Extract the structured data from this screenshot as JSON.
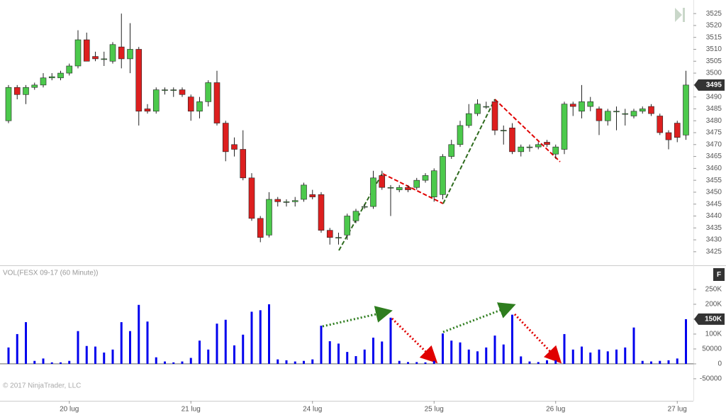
{
  "chart_data": [
    {
      "type": "candlestick",
      "ylim": [
        3419.3,
        3530.7
      ],
      "yticks": [
        3425,
        3430,
        3435,
        3440,
        3445,
        3450,
        3455,
        3460,
        3465,
        3470,
        3475,
        3480,
        3485,
        3490,
        3495,
        3500,
        3505,
        3510,
        3515,
        3520,
        3525
      ],
      "up_color": "#4cc94c",
      "down_color": "#dd1f1f",
      "open": [
        3480,
        3494,
        3491,
        3494,
        3495,
        3498,
        3498,
        3500,
        3503,
        3514,
        3507,
        3506,
        3505,
        3511,
        3506,
        3510,
        3485,
        3484,
        3493,
        3493,
        3493,
        3490,
        3484,
        3488,
        3496,
        3479,
        3470,
        3468,
        3456,
        3439,
        3432,
        3447,
        3446,
        3446,
        3447,
        3449,
        3449,
        3434,
        3431,
        3432,
        3438,
        3444,
        3444,
        3457,
        3452,
        3451,
        3452,
        3452,
        3455,
        3448,
        3449,
        3465,
        3470,
        3478,
        3483,
        3486,
        3488,
        3476,
        3477,
        3467,
        3469,
        3469,
        3471,
        3466,
        3468,
        3487,
        3484,
        3486,
        3485,
        3480,
        3484,
        3483,
        3482,
        3484,
        3486,
        3482,
        3475,
        3479,
        3474
      ],
      "high": [
        3495,
        3495,
        3495,
        3496,
        3500,
        3500,
        3501,
        3504,
        3518,
        3517,
        3509,
        3509,
        3513,
        3525,
        3521,
        3511,
        3487,
        3494,
        3494,
        3494,
        3494,
        3491,
        3490,
        3497,
        3501,
        3480,
        3473,
        3476,
        3458,
        3440,
        3450,
        3448,
        3447,
        3448,
        3454,
        3451,
        3450,
        3435,
        3433,
        3441,
        3443,
        3445,
        3459,
        3459,
        3453,
        3453,
        3453,
        3456,
        3458,
        3460,
        3466,
        3472,
        3480,
        3487,
        3489,
        3488,
        3489,
        3478,
        3479,
        3470,
        3470,
        3471,
        3472,
        3470,
        3488,
        3488,
        3495,
        3490,
        3486,
        3485,
        3486,
        3485,
        3485,
        3486,
        3487,
        3483,
        3476,
        3480,
        3501
      ],
      "low": [
        3479,
        3489,
        3487,
        3493,
        3494,
        3497,
        3497,
        3499,
        3502,
        3505,
        3505,
        3503,
        3504,
        3502,
        3500,
        3478,
        3483,
        3483,
        3491,
        3490,
        3490,
        3480,
        3481,
        3486,
        3478,
        3463,
        3465,
        3455,
        3438,
        3429,
        3431,
        3444,
        3444,
        3444,
        3446,
        3447,
        3433,
        3428,
        3428,
        3430,
        3437,
        3443,
        3443,
        3451,
        3440,
        3450,
        3450,
        3451,
        3454,
        3446,
        3447,
        3464,
        3469,
        3477,
        3482,
        3485,
        3474,
        3470,
        3466,
        3465,
        3467,
        3468,
        3469,
        3464,
        3466,
        3482,
        3481,
        3484,
        3474,
        3478,
        3476,
        3478,
        3481,
        3483,
        3482,
        3474,
        3468,
        3471,
        3472
      ],
      "close": [
        3494,
        3491,
        3494,
        3495,
        3498,
        3498.5,
        3500,
        3503,
        3514,
        3505,
        3506,
        3506,
        3512,
        3506,
        3510,
        3484,
        3484,
        3493,
        3493,
        3493,
        3491,
        3484,
        3488,
        3496,
        3479,
        3467,
        3468,
        3456,
        3439,
        3431,
        3447,
        3446,
        3446,
        3446.5,
        3453,
        3448,
        3434,
        3431,
        3431,
        3440,
        3442,
        3444,
        3456,
        3452,
        3452,
        3452,
        3451,
        3455,
        3457,
        3459,
        3465,
        3470,
        3478,
        3483,
        3487,
        3486,
        3476,
        3476,
        3467,
        3469,
        3469,
        3470,
        3470,
        3469,
        3487,
        3486,
        3488,
        3488,
        3480,
        3484,
        3484,
        3483,
        3484,
        3485,
        3483,
        3475,
        3472,
        3473,
        3495
      ]
    },
    {
      "type": "bar",
      "title": "VOL(FESX 09-17 (60 Minute))",
      "credit": "© 2017 NinjaTrader, LLC",
      "panel_button": "F",
      "color": "#0000ee",
      "ylim": [
        -124000,
        326000
      ],
      "yticks": [
        {
          "value": 250000,
          "label": "250K"
        },
        {
          "value": 200000,
          "label": "200K"
        },
        {
          "value": 150000,
          "label": "150K"
        },
        {
          "value": 100000,
          "label": "100K"
        },
        50000,
        0,
        -50000
      ],
      "categories": [
        null,
        null,
        null,
        null,
        null,
        null,
        null,
        "20 lug",
        null,
        null,
        null,
        null,
        null,
        null,
        null,
        null,
        null,
        null,
        null,
        null,
        null,
        "21 lug",
        null,
        null,
        null,
        null,
        null,
        null,
        null,
        null,
        null,
        null,
        null,
        null,
        null,
        "24 lug",
        null,
        null,
        null,
        null,
        null,
        null,
        null,
        null,
        null,
        null,
        null,
        null,
        null,
        "25 lug",
        null,
        null,
        null,
        null,
        null,
        null,
        null,
        null,
        null,
        null,
        null,
        null,
        null,
        "26 lug",
        null,
        null,
        null,
        null,
        null,
        null,
        null,
        null,
        null,
        null,
        null,
        null,
        null,
        "27 lug",
        null
      ],
      "values": [
        55000,
        100000,
        140000,
        10000,
        18000,
        5000,
        5000,
        10000,
        110000,
        60000,
        58000,
        38000,
        48000,
        140000,
        110000,
        198000,
        142000,
        22000,
        8000,
        5000,
        8000,
        20000,
        78000,
        48000,
        135000,
        148000,
        62000,
        98000,
        175000,
        180000,
        200000,
        15000,
        12000,
        8000,
        10000,
        15000,
        128000,
        76000,
        68000,
        40000,
        26000,
        48000,
        88000,
        75000,
        155000,
        10000,
        6000,
        6000,
        5000,
        10000,
        102000,
        78000,
        72000,
        48000,
        42000,
        55000,
        95000,
        65000,
        165000,
        25000,
        8000,
        6000,
        12000,
        12000,
        100000,
        48000,
        58000,
        38000,
        48000,
        42000,
        48000,
        55000,
        122000,
        10000,
        8000,
        10000,
        12000,
        18000,
        150000
      ],
      "value_labels": [
        null,
        null,
        null,
        null,
        null,
        null,
        null,
        null,
        null,
        null,
        null,
        null,
        null,
        null,
        null,
        null,
        null,
        null,
        null,
        null,
        null,
        null,
        null,
        null,
        null,
        null,
        null,
        null,
        null,
        null,
        null,
        null,
        null,
        null,
        null,
        null,
        null,
        null,
        null,
        null,
        null,
        null,
        null,
        null,
        null,
        null,
        null,
        null,
        null,
        null,
        null,
        null,
        null,
        null,
        null,
        null,
        null,
        null,
        null,
        null,
        null,
        null,
        null,
        null,
        null,
        null,
        null,
        null,
        null,
        null,
        null,
        null,
        null,
        null,
        null,
        null,
        null,
        null,
        "150K"
      ]
    }
  ]
}
